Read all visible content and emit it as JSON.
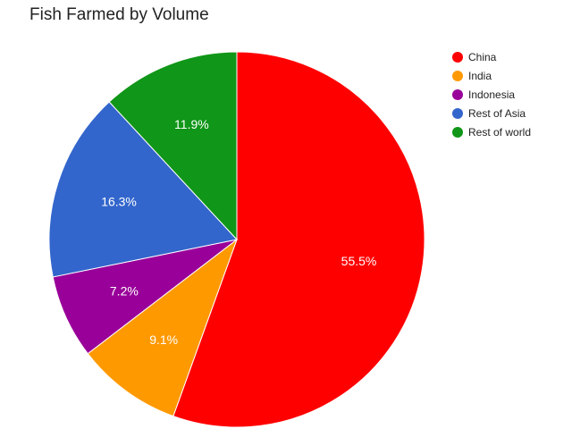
{
  "chart_data": {
    "type": "pie",
    "title": "Fish Farmed by Volume",
    "categories": [
      "China",
      "India",
      "Indonesia",
      "Rest of Asia",
      "Rest of world"
    ],
    "values": [
      55.5,
      9.1,
      7.2,
      16.3,
      11.9
    ],
    "labels": [
      "55.5%",
      "9.1%",
      "7.2%",
      "16.3%",
      "11.9%"
    ],
    "colors": [
      "#ff0000",
      "#ff9900",
      "#990099",
      "#3366cc",
      "#109618"
    ],
    "start_angle_deg": 0,
    "direction": "clockwise",
    "legend_position": "top-right"
  }
}
